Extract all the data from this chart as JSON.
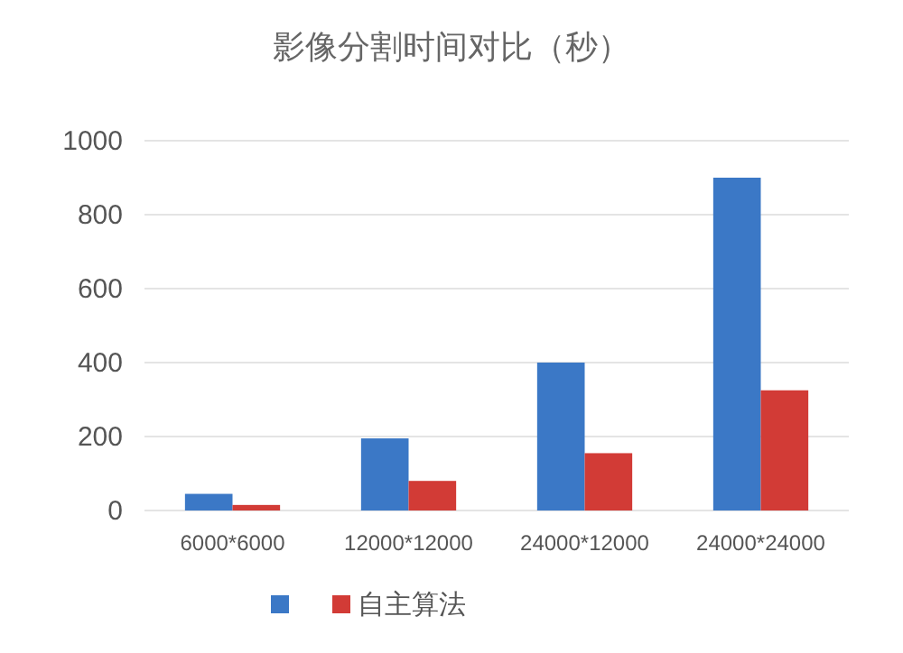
{
  "chart_data": {
    "type": "bar",
    "title": "影像分割时间对比（秒）",
    "categories": [
      "6000*6000",
      "12000*12000",
      "24000*12000",
      "24000*24000"
    ],
    "series": [
      {
        "color": "#3b78c6",
        "values": [
          45,
          195,
          400,
          900
        ]
      },
      {
        "name": "自主算法",
        "color": "#d23b36",
        "values": [
          15,
          80,
          155,
          325
        ]
      }
    ],
    "ylim": [
      0,
      1000
    ],
    "yticks": [
      0,
      200,
      400,
      600,
      800,
      1000
    ],
    "grid": "y",
    "legend": "bottom"
  }
}
